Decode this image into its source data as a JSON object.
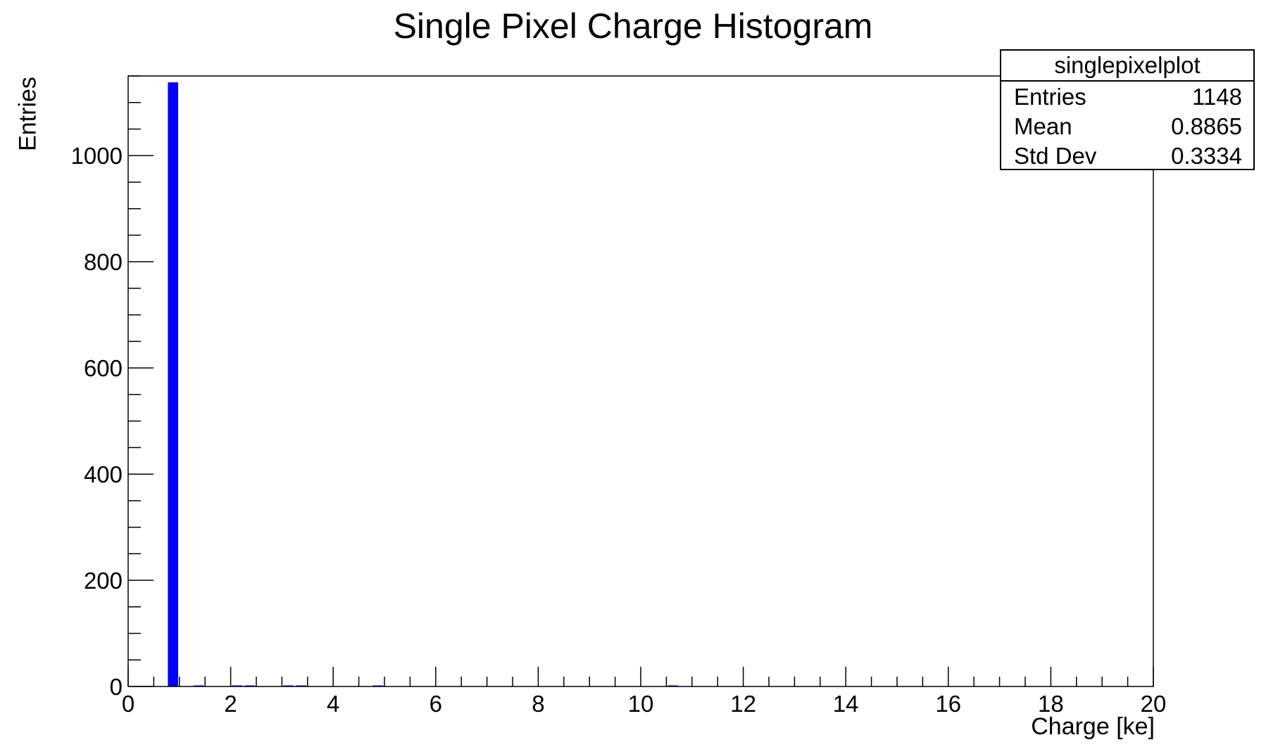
{
  "chart_data": {
    "type": "bar",
    "title": "Single Pixel Charge Histogram",
    "xlabel": "Charge [ke]",
    "ylabel": "Entries",
    "xlim": [
      0,
      20
    ],
    "ylim": [
      0,
      1150
    ],
    "bin_width": 0.25,
    "x_ticks": [
      0,
      2,
      4,
      6,
      8,
      10,
      12,
      14,
      16,
      18,
      20
    ],
    "y_ticks": [
      0,
      200,
      400,
      600,
      800,
      1000
    ],
    "grid": false,
    "bar_color": "#0000ff",
    "bins": [
      {
        "x": 0.75,
        "value": 1138
      },
      {
        "x": 1.25,
        "value": 1
      },
      {
        "x": 2.0,
        "value": 2
      },
      {
        "x": 2.25,
        "value": 2
      },
      {
        "x": 3.0,
        "value": 1
      },
      {
        "x": 3.25,
        "value": 1
      },
      {
        "x": 4.75,
        "value": 1
      },
      {
        "x": 10.5,
        "value": 1
      }
    ]
  },
  "stats_box": {
    "name": "singlepixelplot",
    "rows": [
      {
        "label": "Entries",
        "value": "1148"
      },
      {
        "label": "Mean",
        "value": "0.8865"
      },
      {
        "label": "Std Dev",
        "value": "0.3334"
      }
    ]
  }
}
